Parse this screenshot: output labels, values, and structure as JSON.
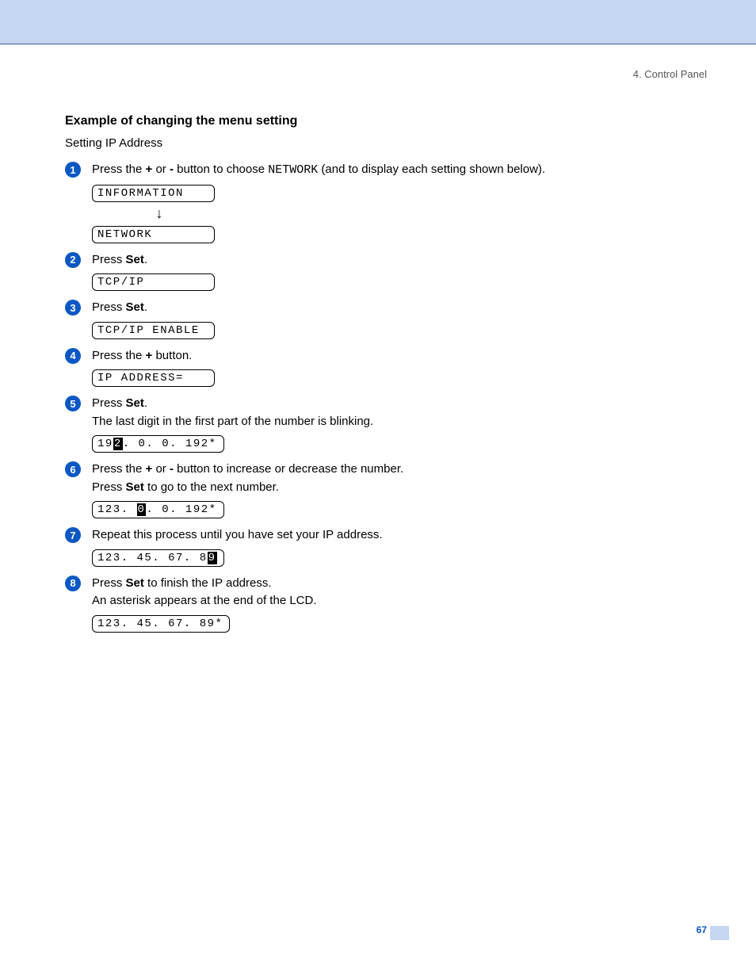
{
  "colors": {
    "banner_bg": "#c6d7f2",
    "banner_border": "#435ea0",
    "bullet_bg": "#0b57c4",
    "bullet_fg": "#ffffff",
    "text": "#000000",
    "chapter_ref": "#555555",
    "page_number": "#0b57c4"
  },
  "typography": {
    "body_family": "Arial, Helvetica, sans-serif",
    "body_size_pt": 11,
    "heading_size_pt": 12,
    "heading_weight": "bold",
    "mono_family": "Courier New, monospace",
    "lcd_size_pt": 10
  },
  "chapter_ref": "4. Control Panel",
  "heading": "Example of changing the menu setting",
  "subheading": "Setting IP Address",
  "page_number": "67",
  "steps": [
    {
      "num": "1",
      "text_parts": [
        {
          "t": "Press the "
        },
        {
          "t": "+",
          "b": true
        },
        {
          "t": " or "
        },
        {
          "t": "-",
          "b": true
        },
        {
          "t": " button to choose "
        },
        {
          "t": "NETWORK",
          "mono": true
        },
        {
          "t": " (and to display each setting shown below)."
        }
      ],
      "lcds": [
        {
          "segments": [
            {
              "t": "INFORMATION"
            }
          ]
        },
        {
          "arrow": true
        },
        {
          "segments": [
            {
              "t": "NETWORK"
            }
          ]
        }
      ]
    },
    {
      "num": "2",
      "text_parts": [
        {
          "t": "Press "
        },
        {
          "t": "Set",
          "b": true
        },
        {
          "t": "."
        }
      ],
      "lcds": [
        {
          "segments": [
            {
              "t": "TCP/IP"
            }
          ]
        }
      ]
    },
    {
      "num": "3",
      "text_parts": [
        {
          "t": "Press "
        },
        {
          "t": "Set",
          "b": true
        },
        {
          "t": "."
        }
      ],
      "lcds": [
        {
          "segments": [
            {
              "t": "TCP/IP ENABLE"
            }
          ]
        }
      ]
    },
    {
      "num": "4",
      "text_parts": [
        {
          "t": "Press the "
        },
        {
          "t": "+",
          "b": true
        },
        {
          "t": " button."
        }
      ],
      "lcds": [
        {
          "segments": [
            {
              "t": "IP ADDRESS="
            }
          ]
        }
      ]
    },
    {
      "num": "5",
      "text_parts": [
        {
          "t": "Press "
        },
        {
          "t": "Set",
          "b": true
        },
        {
          "t": ".\nThe last digit in the first part of the number is blinking."
        }
      ],
      "lcds": [
        {
          "segments": [
            {
              "t": "19"
            },
            {
              "t": "2",
              "cursor": true
            },
            {
              "t": ". 0. 0. 192*"
            }
          ]
        }
      ]
    },
    {
      "num": "6",
      "text_parts": [
        {
          "t": "Press the "
        },
        {
          "t": "+",
          "b": true
        },
        {
          "t": " or "
        },
        {
          "t": "-",
          "b": true
        },
        {
          "t": " button to increase or decrease the number.\nPress "
        },
        {
          "t": "Set",
          "b": true
        },
        {
          "t": " to go to the next number."
        }
      ],
      "lcds": [
        {
          "segments": [
            {
              "t": "123. "
            },
            {
              "t": "0",
              "cursor": true
            },
            {
              "t": ". 0. 192*"
            }
          ]
        }
      ]
    },
    {
      "num": "7",
      "text_parts": [
        {
          "t": "Repeat this process until you have set your IP address."
        }
      ],
      "lcds": [
        {
          "segments": [
            {
              "t": "123. 45. 67. 8"
            },
            {
              "t": "9",
              "cursor": true
            }
          ]
        }
      ]
    },
    {
      "num": "8",
      "text_parts": [
        {
          "t": "Press "
        },
        {
          "t": "Set",
          "b": true
        },
        {
          "t": " to finish the IP address.\nAn asterisk appears at the end of the LCD."
        }
      ],
      "lcds": [
        {
          "segments": [
            {
              "t": "123. 45. 67. 89*"
            }
          ]
        }
      ]
    }
  ]
}
